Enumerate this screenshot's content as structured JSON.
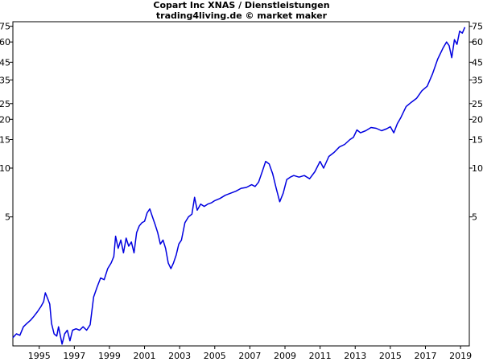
{
  "chart_data": {
    "type": "line",
    "title": "Copart Inc XNAS / Dienstleistungen",
    "subtitle": "trading4living.de © market maker",
    "xlabel": "",
    "ylabel": "",
    "y_scale": "log",
    "xlim": [
      1993.5,
      2019.5
    ],
    "ylim": [
      0.8,
      80
    ],
    "grid": false,
    "line_color": "#0000e0",
    "x_ticks": [
      {
        "value": 1995,
        "label": "1995"
      },
      {
        "value": 1997,
        "label": "1997"
      },
      {
        "value": 1999,
        "label": "1999"
      },
      {
        "value": 2001,
        "label": "2001"
      },
      {
        "value": 2003,
        "label": "2003"
      },
      {
        "value": 2005,
        "label": "2005"
      },
      {
        "value": 2007,
        "label": "2007"
      },
      {
        "value": 2009,
        "label": "2009"
      },
      {
        "value": 2011,
        "label": "2011"
      },
      {
        "value": 2013,
        "label": "2013"
      },
      {
        "value": 2015,
        "label": "2015"
      },
      {
        "value": 2017,
        "label": "2017"
      },
      {
        "value": 2019,
        "label": "2019"
      }
    ],
    "y_ticks": [
      {
        "value": 5,
        "label": "5"
      },
      {
        "value": 10,
        "label": "10"
      },
      {
        "value": 15,
        "label": "15"
      },
      {
        "value": 20,
        "label": "20"
      },
      {
        "value": 25,
        "label": "25"
      },
      {
        "value": 35,
        "label": "35"
      },
      {
        "value": 45,
        "label": "45"
      },
      {
        "value": 60,
        "label": "60"
      },
      {
        "value": 75,
        "label": "75"
      }
    ],
    "series": [
      {
        "x": [
          1993.5,
          1993.7,
          1993.9,
          1994.1,
          1994.3,
          1994.5,
          1994.7,
          1994.9,
          1995.1,
          1995.25,
          1995.35,
          1995.5,
          1995.6,
          1995.7,
          1995.85,
          1996.0,
          1996.1,
          1996.3,
          1996.45,
          1996.6,
          1996.75,
          1996.9,
          1997.1,
          1997.3,
          1997.5,
          1997.7,
          1997.9,
          1998.1,
          1998.3,
          1998.5,
          1998.7,
          1998.9,
          1999.1,
          1999.25,
          1999.35,
          1999.5,
          1999.65,
          1999.8,
          1999.95,
          2000.1,
          2000.25,
          2000.4,
          2000.55,
          2000.7,
          2000.85,
          2001.0,
          2001.15,
          2001.3,
          2001.45,
          2001.6,
          2001.75,
          2001.9,
          2002.05,
          2002.2,
          2002.35,
          2002.5,
          2002.65,
          2002.8,
          2002.95,
          2003.1,
          2003.3,
          2003.5,
          2003.7,
          2003.85,
          2004.0,
          2004.2,
          2004.4,
          2004.6,
          2004.8,
          2005.0,
          2005.3,
          2005.6,
          2005.9,
          2006.2,
          2006.5,
          2006.8,
          2007.1,
          2007.3,
          2007.5,
          2007.7,
          2007.9,
          2008.1,
          2008.3,
          2008.5,
          2008.7,
          2008.9,
          2009.1,
          2009.3,
          2009.5,
          2009.8,
          2010.1,
          2010.4,
          2010.7,
          2011.0,
          2011.2,
          2011.5,
          2011.8,
          2012.1,
          2012.4,
          2012.7,
          2012.9,
          2013.1,
          2013.3,
          2013.6,
          2013.9,
          2014.2,
          2014.5,
          2014.8,
          2015.0,
          2015.2,
          2015.4,
          2015.6,
          2015.9,
          2016.2,
          2016.5,
          2016.8,
          2017.1,
          2017.4,
          2017.7,
          2018.0,
          2018.2,
          2018.35,
          2018.5,
          2018.65,
          2018.8,
          2018.95,
          2019.1,
          2019.25
        ],
        "y": [
          0.9,
          0.95,
          0.93,
          1.05,
          1.1,
          1.15,
          1.22,
          1.3,
          1.4,
          1.5,
          1.7,
          1.55,
          1.45,
          1.1,
          0.95,
          0.92,
          1.05,
          0.82,
          0.95,
          1.0,
          0.86,
          1.0,
          1.02,
          1.0,
          1.05,
          1.0,
          1.08,
          1.6,
          1.85,
          2.1,
          2.05,
          2.4,
          2.6,
          2.85,
          3.8,
          3.2,
          3.6,
          3.0,
          3.7,
          3.3,
          3.5,
          3.0,
          4.0,
          4.4,
          4.6,
          4.7,
          5.3,
          5.6,
          5.0,
          4.5,
          4.0,
          3.4,
          3.6,
          3.2,
          2.6,
          2.4,
          2.6,
          2.9,
          3.4,
          3.6,
          4.6,
          5.0,
          5.2,
          6.6,
          5.5,
          6.0,
          5.8,
          6.0,
          6.1,
          6.3,
          6.5,
          6.8,
          7.0,
          7.2,
          7.5,
          7.6,
          7.9,
          7.7,
          8.2,
          9.5,
          11.0,
          10.6,
          9.2,
          7.5,
          6.2,
          7.0,
          8.5,
          8.8,
          9.0,
          8.8,
          9.0,
          8.6,
          9.5,
          11.0,
          10.0,
          11.8,
          12.5,
          13.5,
          14.0,
          15.0,
          15.5,
          17.2,
          16.5,
          17.0,
          17.8,
          17.6,
          17.0,
          17.5,
          18.0,
          16.5,
          18.8,
          20.5,
          24.0,
          25.5,
          27.0,
          30.0,
          32.0,
          38.0,
          47.0,
          55.0,
          60.0,
          57.0,
          48.0,
          62.0,
          58.0,
          70.0,
          68.0,
          74.0
        ]
      }
    ]
  }
}
